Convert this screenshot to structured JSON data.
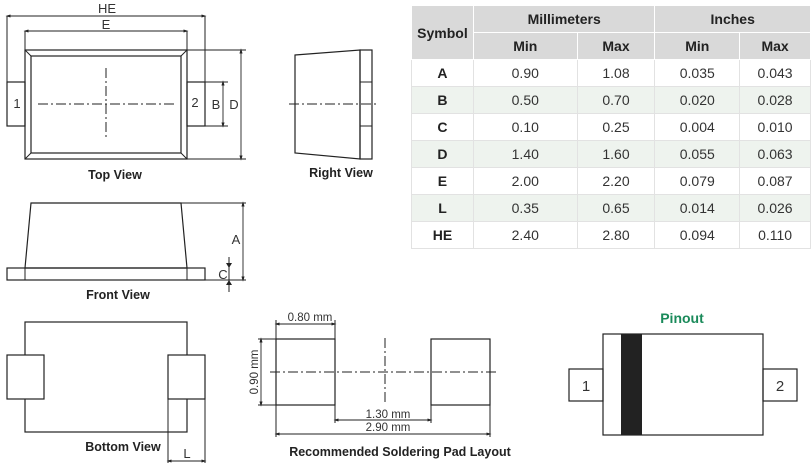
{
  "top_view": {
    "caption": "Top View",
    "dim_he": "HE",
    "dim_e": "E",
    "dim_b": "B",
    "dim_d": "D",
    "pin1": "1",
    "pin2": "2"
  },
  "right_view": {
    "caption": "Right View"
  },
  "front_view": {
    "caption": "Front View",
    "dim_a": "A",
    "dim_c": "C"
  },
  "bottom_view": {
    "caption": "Bottom View",
    "dim_l": "L"
  },
  "pad_layout": {
    "caption": "Recommended Soldering Pad Layout",
    "pad_width": "0.80 mm",
    "pad_height": "0.90 mm",
    "gap": "1.30 mm",
    "total": "2.90 mm"
  },
  "pinout": {
    "title": "Pinout",
    "title_color": "#1a8a5a",
    "pin1": "1",
    "pin2": "2",
    "band_color": "#222222"
  },
  "table": {
    "symbol_header": "Symbol",
    "group_headers": [
      "Millimeters",
      "Inches"
    ],
    "sub_headers": [
      "Min",
      "Max",
      "Min",
      "Max"
    ],
    "rows": [
      [
        "A",
        "0.90",
        "1.08",
        "0.035",
        "0.043"
      ],
      [
        "B",
        "0.50",
        "0.70",
        "0.020",
        "0.028"
      ],
      [
        "C",
        "0.10",
        "0.25",
        "0.004",
        "0.010"
      ],
      [
        "D",
        "1.40",
        "1.60",
        "0.055",
        "0.063"
      ],
      [
        "E",
        "2.00",
        "2.20",
        "0.079",
        "0.087"
      ],
      [
        "L",
        "0.35",
        "0.65",
        "0.014",
        "0.026"
      ],
      [
        "HE",
        "2.40",
        "2.80",
        "0.094",
        "0.110"
      ]
    ]
  }
}
